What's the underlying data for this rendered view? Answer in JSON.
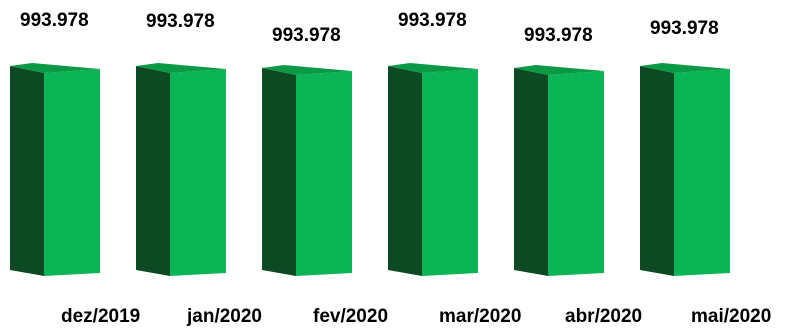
{
  "chart_data": {
    "type": "bar",
    "categories": [
      "dez/2019",
      "jan/2020",
      "fev/2020",
      "mar/2020",
      "abr/2020",
      "mai/2020"
    ],
    "values": [
      993978,
      993978,
      993978,
      993978,
      993978,
      993978
    ],
    "value_labels": [
      "993.978",
      "993.978",
      "993.978",
      "993.978",
      "993.978",
      "993.978"
    ],
    "title": "",
    "xlabel": "",
    "ylabel": "",
    "grid": false,
    "legend": "none",
    "style": "3d-column",
    "colors": {
      "front": "#0bb454",
      "side": "#0d4a24",
      "top": "#0a9a45"
    }
  }
}
